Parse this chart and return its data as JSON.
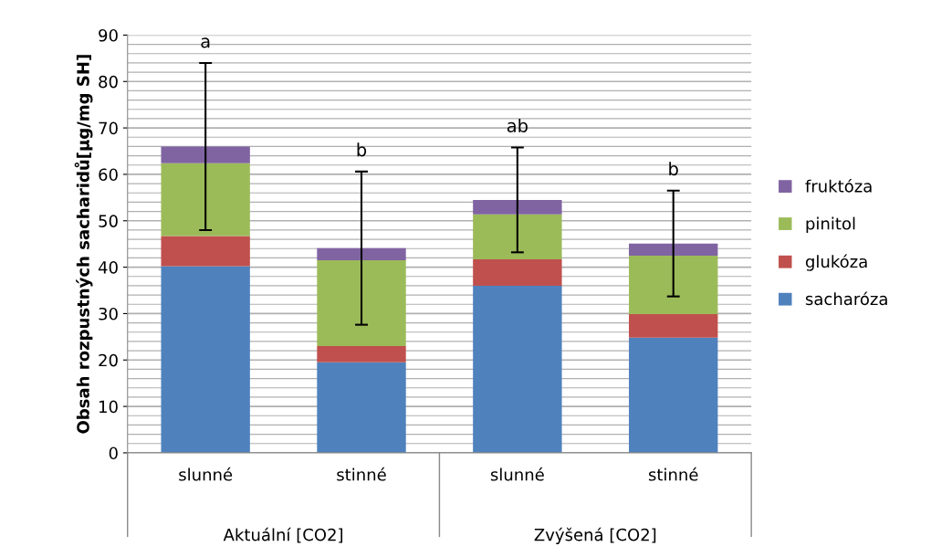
{
  "chart_data": {
    "type": "bar",
    "stacked": true,
    "categories": [
      "slunné",
      "stinné",
      "slunné",
      "stinné"
    ],
    "ylabel": "Obsah rozpustných sacharidů[µg/mg SH]",
    "ylim": [
      0,
      90
    ],
    "yticks": [
      0,
      10,
      20,
      30,
      40,
      50,
      60,
      70,
      80,
      90
    ],
    "grid": true,
    "legend": "right",
    "series": [
      {
        "name": "sacharóza",
        "color": "#4f81bd",
        "values": [
          40.2,
          19.5,
          36.0,
          24.8
        ]
      },
      {
        "name": "glukóza",
        "color": "#c0504d",
        "values": [
          6.5,
          3.5,
          5.7,
          5.1
        ]
      },
      {
        "name": "pinitol",
        "color": "#9bbb59",
        "values": [
          15.7,
          18.5,
          9.7,
          12.6
        ]
      },
      {
        "name": "fruktóza",
        "color": "#8064a2",
        "values": [
          3.6,
          2.6,
          3.1,
          2.6
        ],
        "errors": [
          18,
          16.5,
          11.3,
          11.4
        ]
      }
    ],
    "annotations": [
      "a",
      "b",
      "ab",
      "b",
      "Aktuální [CO2]",
      "Zvýšená [CO2]"
    ]
  }
}
